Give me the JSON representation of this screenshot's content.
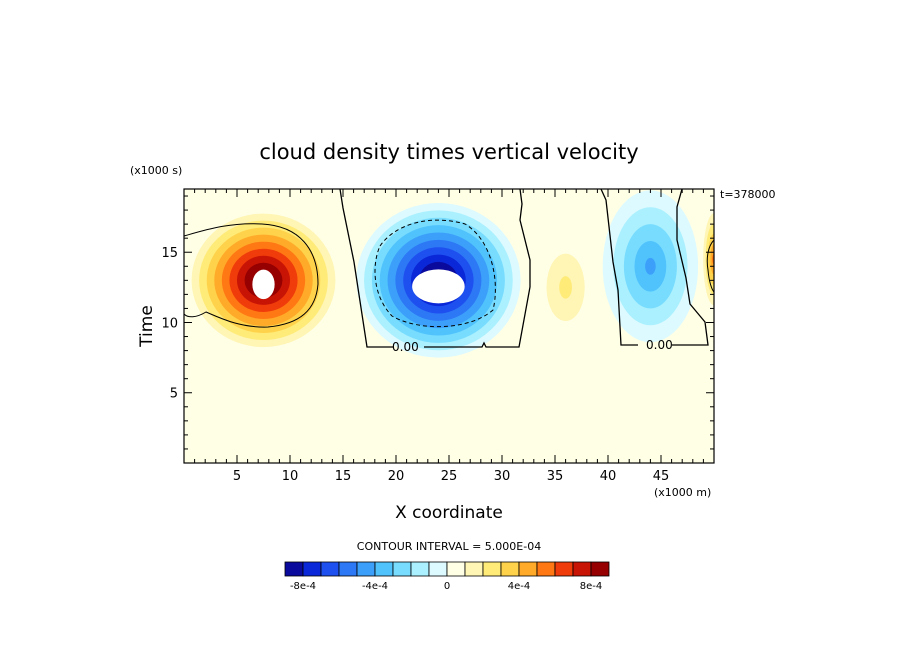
{
  "chart_data": {
    "type": "heatmap",
    "title": "cloud density times vertical velocity",
    "xlabel": "X coordinate",
    "ylabel": "Time",
    "x_unit": "(x1000 m)",
    "y_unit": "(x1000 s)",
    "time_stamp": "t=378000",
    "xlim": [
      0,
      50
    ],
    "ylim": [
      0,
      19.5
    ],
    "x_ticks": [
      5,
      10,
      15,
      20,
      25,
      30,
      35,
      40,
      45
    ],
    "y_ticks": [
      5,
      10,
      15
    ],
    "contour_interval_text": "CONTOUR INTERVAL = 5.000E-04",
    "zero_contour_labels": [
      "0.00",
      "0.00"
    ],
    "colorbar": {
      "colors": [
        "#0a0a9c",
        "#0a28d8",
        "#1e50f0",
        "#2d78f5",
        "#3ca0fa",
        "#50c3fc",
        "#78dcff",
        "#aaf0ff",
        "#dcfaff",
        "#ffffe6",
        "#fff5b4",
        "#ffeb78",
        "#ffd24b",
        "#ffaa28",
        "#ff7814",
        "#f03c0a",
        "#c81405",
        "#960000"
      ],
      "tick_labels": [
        "-8e-4",
        "-4e-4",
        "0",
        "4e-4",
        "8e-4"
      ],
      "tick_values": [
        -0.0008,
        -0.0004,
        0,
        0.0004,
        0.0008
      ],
      "range": [
        -0.0009,
        0.0009
      ]
    },
    "features": [
      {
        "kind": "positive maximum",
        "x": 7.5,
        "y": 13,
        "peak": 0.001,
        "x_extent": [
          0,
          15
        ],
        "y_extent": [
          9,
          19.5
        ]
      },
      {
        "kind": "negative minimum",
        "x": 24,
        "y": 13,
        "peak": -0.001,
        "x_extent": [
          16,
          31.5
        ],
        "y_extent": [
          8.5,
          19.5
        ]
      },
      {
        "kind": "weak positive",
        "x": 36,
        "y": 12.5,
        "peak": 0.0002,
        "x_extent": [
          33,
          39
        ],
        "y_extent": [
          9,
          17
        ]
      },
      {
        "kind": "weak negative",
        "x": 44,
        "y": 14,
        "peak": -0.0004,
        "x_extent": [
          40,
          49
        ],
        "y_extent": [
          8.7,
          19.5
        ]
      },
      {
        "kind": "positive edge",
        "x": 50,
        "y": 14.5,
        "peak": 0.0005,
        "x_extent": [
          47.5,
          50
        ],
        "y_extent": [
          10,
          18
        ]
      }
    ]
  }
}
